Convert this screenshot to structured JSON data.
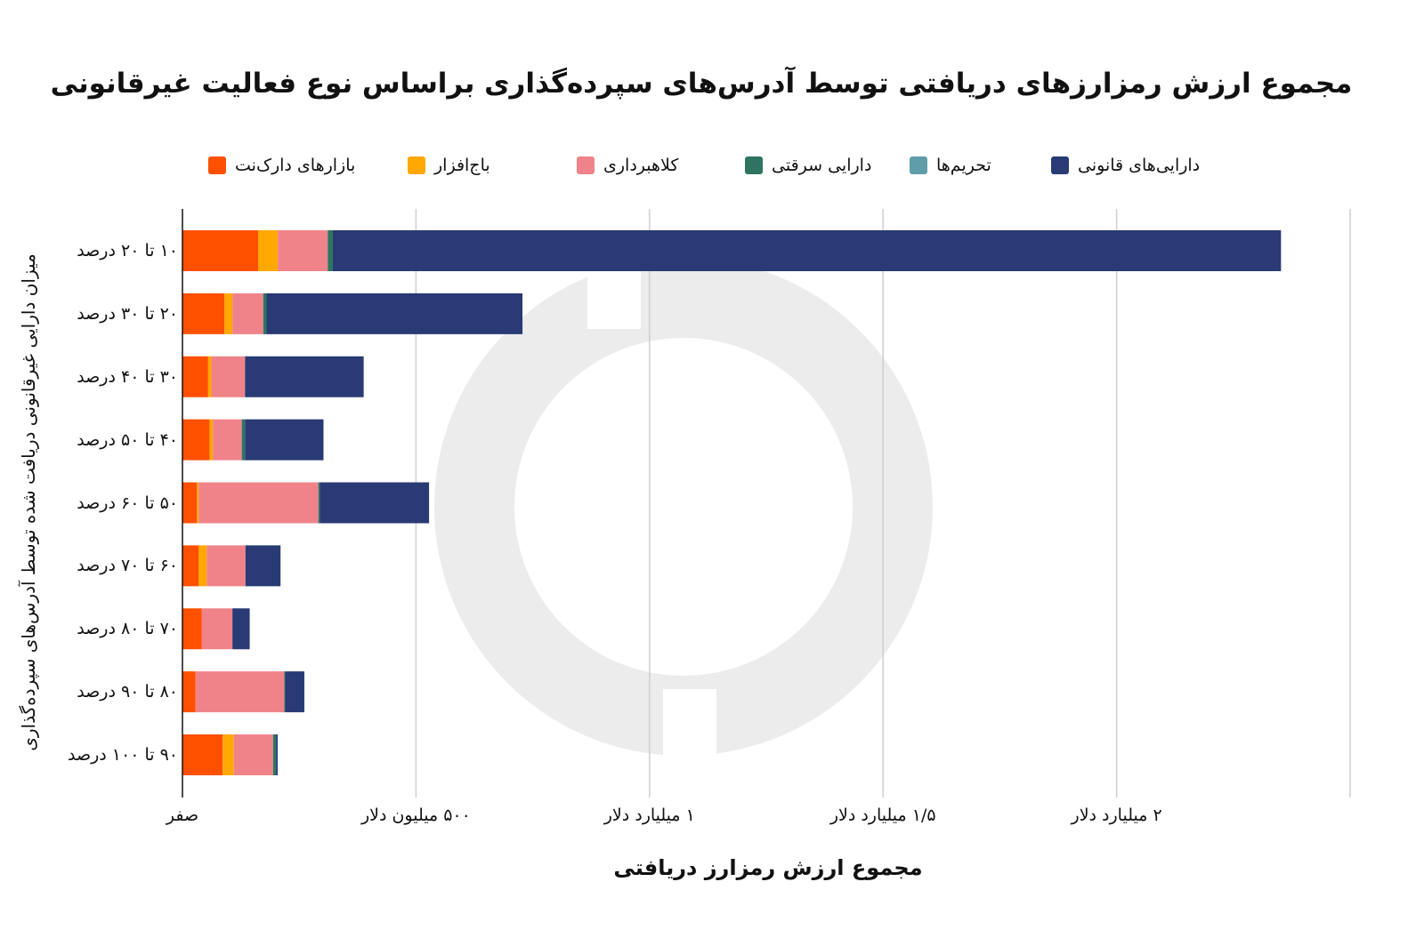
{
  "chart_data": {
    "type": "bar",
    "orientation": "horizontal",
    "stacked": true,
    "title": "مجموع ارزش رمزارزهای دریافتی توسط آدرس‌های سپرده‌گذاری براساس نوع فعالیت غیرقانونی",
    "xlabel": "مجموع ارزش رمزارز دریافتی",
    "ylabel": "میزان دارایی غیرقانونی دریافت شده توسط آدرس‌های سپرده‌گذاری",
    "xlim": [
      0,
      2500
    ],
    "x_unit": "million USD",
    "x_ticks": [
      {
        "value": 0,
        "label": "صفر"
      },
      {
        "value": 500,
        "label": "۵۰۰ میلیون دلار"
      },
      {
        "value": 1000,
        "label": "۱ میلیارد دلار"
      },
      {
        "value": 1500,
        "label": "۱/۵ میلیارد دلار"
      },
      {
        "value": 2000,
        "label": "۲ میلیارد دلار"
      },
      {
        "value": 2500,
        "label": ""
      }
    ],
    "grid": true,
    "legend_position": "top",
    "categories": [
      "۱۰ تا ۲۰ درصد",
      "۲۰ تا ۳۰ درصد",
      "۳۰ تا ۴۰ درصد",
      "۴۰ تا ۵۰ درصد",
      "۵۰ تا ۶۰ درصد",
      "۶۰ تا ۷۰ درصد",
      "۷۰ تا ۸۰ درصد",
      "۸۰ تا ۹۰ درصد",
      "۹۰ تا ۱۰۰ درصد"
    ],
    "series": [
      {
        "name": "بازارهای دارک‌نت",
        "color": "#FF5000",
        "values": [
          162,
          90,
          55,
          58,
          31,
          35,
          41,
          28,
          86
        ]
      },
      {
        "name": "باج‌افزار",
        "color": "#FFA800",
        "values": [
          42,
          17,
          7,
          7,
          4,
          17,
          0,
          0,
          24
        ]
      },
      {
        "name": "کلاهبرداری",
        "color": "#F0838A",
        "values": [
          107,
          66,
          72,
          62,
          256,
          83,
          66,
          190,
          84
        ]
      },
      {
        "name": "دارایی سرقتی",
        "color": "#2F7461",
        "values": [
          11,
          7,
          0,
          7,
          3,
          0,
          0,
          2,
          7
        ]
      },
      {
        "name": "تحریم‌ها",
        "color": "#5F9EA8",
        "values": [
          0,
          0,
          0,
          0,
          0,
          0,
          0,
          0,
          0
        ]
      },
      {
        "name": "دارایی‌های قانونی",
        "color": "#293A74",
        "values": [
          2030,
          548,
          254,
          168,
          234,
          75,
          37,
          41,
          3
        ]
      }
    ]
  }
}
